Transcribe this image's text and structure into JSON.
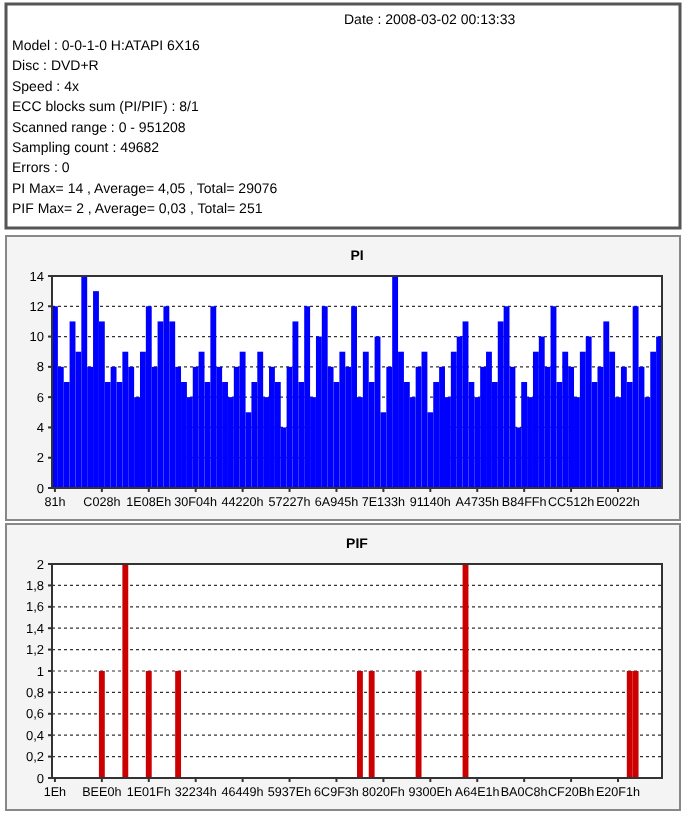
{
  "chart_data": [
    {
      "type": "other",
      "annotations": [
        "Date : 2008-03-02 00:13:33",
        "Model : 0-0-1-0 H:ATAPI 6X16",
        "Disc : DVD+R",
        "Speed : 4x",
        "ECC blocks sum (PI/PIF) : 8/1",
        "Scanned range : 0 - 951208",
        "Sampling count : 49682",
        "Errors : 0",
        "PI Max= 14 , Average= 4,05 , Total= 29076",
        "PIF Max= 2 , Average= 0,03 , Total= 251"
      ]
    },
    {
      "type": "bar",
      "title": "PI",
      "categories": [
        "81h",
        null,
        null,
        null,
        null,
        null,
        null,
        null,
        "C028h",
        null,
        null,
        null,
        null,
        null,
        null,
        null,
        "1E08Eh",
        null,
        null,
        null,
        null,
        null,
        null,
        null,
        "30F04h",
        null,
        null,
        null,
        null,
        null,
        null,
        null,
        "44220h",
        null,
        null,
        null,
        null,
        null,
        null,
        null,
        "57227h",
        null,
        null,
        null,
        null,
        null,
        null,
        null,
        "6A945h",
        null,
        null,
        null,
        null,
        null,
        null,
        null,
        "7E133h",
        null,
        null,
        null,
        null,
        null,
        null,
        null,
        "91140h",
        null,
        null,
        null,
        null,
        null,
        null,
        null,
        "A4735h",
        null,
        null,
        null,
        null,
        null,
        null,
        null,
        "B84FFh",
        null,
        null,
        null,
        null,
        null,
        null,
        null,
        "CC512h",
        null,
        null,
        null,
        null,
        null,
        null,
        null,
        "E0022h",
        null,
        null,
        null,
        null,
        null,
        null,
        null
      ],
      "series": [
        {
          "color": "#0000ff",
          "values": [
            12,
            8,
            7,
            11,
            9,
            14,
            8,
            13,
            11,
            7,
            8,
            7,
            9,
            8,
            6,
            9,
            12,
            8,
            11,
            12,
            11,
            8,
            7,
            6,
            8,
            9,
            7,
            12,
            8,
            7,
            6,
            8,
            9,
            5,
            7,
            9,
            6,
            8,
            7,
            4,
            8,
            11,
            7,
            12,
            6,
            10,
            12,
            8,
            7,
            9,
            8,
            12,
            6,
            9,
            7,
            10,
            5,
            8,
            14,
            9,
            7,
            6,
            8,
            9,
            5,
            7,
            8,
            6,
            9,
            10,
            11,
            7,
            6,
            8,
            9,
            7,
            11,
            12,
            8,
            4,
            7,
            6,
            9,
            10,
            8,
            12,
            7,
            9,
            8,
            6,
            9,
            10,
            7,
            8,
            11,
            9,
            6,
            8,
            7,
            12,
            8,
            6,
            9,
            10
          ]
        }
      ],
      "ylim": [
        0,
        14
      ],
      "yticks": [
        0,
        2,
        4,
        6,
        8,
        10,
        12,
        14
      ],
      "grid": "y"
    },
    {
      "type": "bar",
      "title": "PIF",
      "categories": [
        "1Eh",
        null,
        null,
        null,
        null,
        null,
        null,
        null,
        "BEE0h",
        null,
        null,
        null,
        null,
        null,
        null,
        null,
        "1E01Fh",
        null,
        null,
        null,
        null,
        null,
        null,
        null,
        "32234h",
        null,
        null,
        null,
        null,
        null,
        null,
        null,
        "46449h",
        null,
        null,
        null,
        null,
        null,
        null,
        null,
        "5937Eh",
        null,
        null,
        null,
        null,
        null,
        null,
        null,
        "6C9F3h",
        null,
        null,
        null,
        null,
        null,
        null,
        null,
        "8020Fh",
        null,
        null,
        null,
        null,
        null,
        null,
        null,
        "9300Eh",
        null,
        null,
        null,
        null,
        null,
        null,
        null,
        "A64E1h",
        null,
        null,
        null,
        null,
        null,
        null,
        null,
        "BA0C8h",
        null,
        null,
        null,
        null,
        null,
        null,
        null,
        "CF20Bh",
        null,
        null,
        null,
        null,
        null,
        null,
        null,
        "E20F1h",
        null,
        null,
        null,
        null,
        null,
        null,
        null
      ],
      "series": [
        {
          "color": "#cc0000",
          "values": [
            0,
            0,
            0,
            0,
            0,
            0,
            0,
            0,
            1,
            0,
            0,
            0,
            2,
            0,
            0,
            0,
            1,
            0,
            0,
            0,
            0,
            1,
            0,
            0,
            0,
            0,
            0,
            0,
            0,
            0,
            0,
            0,
            0,
            0,
            0,
            0,
            0,
            0,
            0,
            0,
            0,
            0,
            0,
            0,
            0,
            0,
            0,
            0,
            0,
            0,
            0,
            0,
            1,
            0,
            1,
            0,
            0,
            0,
            0,
            0,
            0,
            0,
            1,
            0,
            0,
            0,
            0,
            0,
            0,
            0,
            2,
            0,
            0,
            0,
            0,
            0,
            0,
            0,
            0,
            0,
            0,
            0,
            0,
            0,
            0,
            0,
            0,
            0,
            0,
            0,
            0,
            0,
            0,
            0,
            0,
            0,
            0,
            0,
            1,
            1,
            0,
            0,
            0,
            0
          ]
        }
      ],
      "ylim": [
        0,
        2
      ],
      "yticks": [
        0,
        {
          "value": 0.2,
          "label": "0,2"
        },
        {
          "value": 0.4,
          "label": "0,4"
        },
        {
          "value": 0.6,
          "label": "0,6"
        },
        {
          "value": 0.8,
          "label": "0,8"
        },
        1,
        {
          "value": 1.2,
          "label": "1,2"
        },
        {
          "value": 1.4,
          "label": "1,4"
        },
        {
          "value": 1.6,
          "label": "1,6"
        },
        {
          "value": 1.8,
          "label": "1,8"
        },
        2
      ],
      "grid": "y"
    }
  ]
}
